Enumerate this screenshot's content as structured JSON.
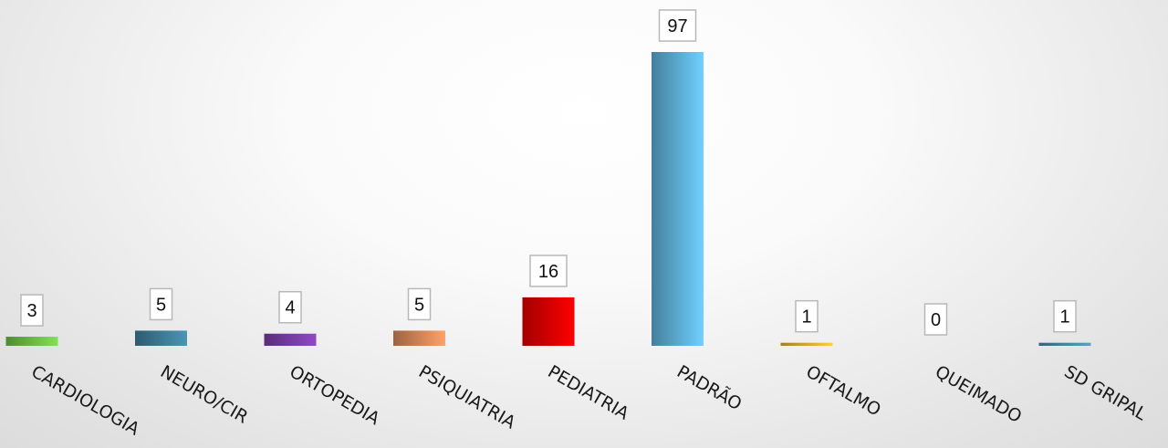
{
  "chart_data": {
    "type": "bar",
    "title": "",
    "xlabel": "",
    "ylabel": "",
    "categories": [
      "CARDIOLOGIA",
      "NEURO/CIR",
      "ORTOPEDIA",
      "PSIQUIATRIA",
      "PEDIATRIA",
      "PADRÃO",
      "OFTALMO",
      "QUEIMADO",
      "SD GRIPAL"
    ],
    "values": [
      3,
      5,
      4,
      5,
      16,
      97,
      1,
      0,
      1
    ],
    "colors": [
      "#6fbf4a",
      "#3f7f9a",
      "#7b3fa8",
      "#d9895a",
      "#e00000",
      "#5fb0d8",
      "#e0b030",
      "#aaaaaa",
      "#4a8aa8"
    ],
    "ylim": [
      0,
      100
    ],
    "grid": false,
    "legend": "none",
    "data_labels": true
  }
}
